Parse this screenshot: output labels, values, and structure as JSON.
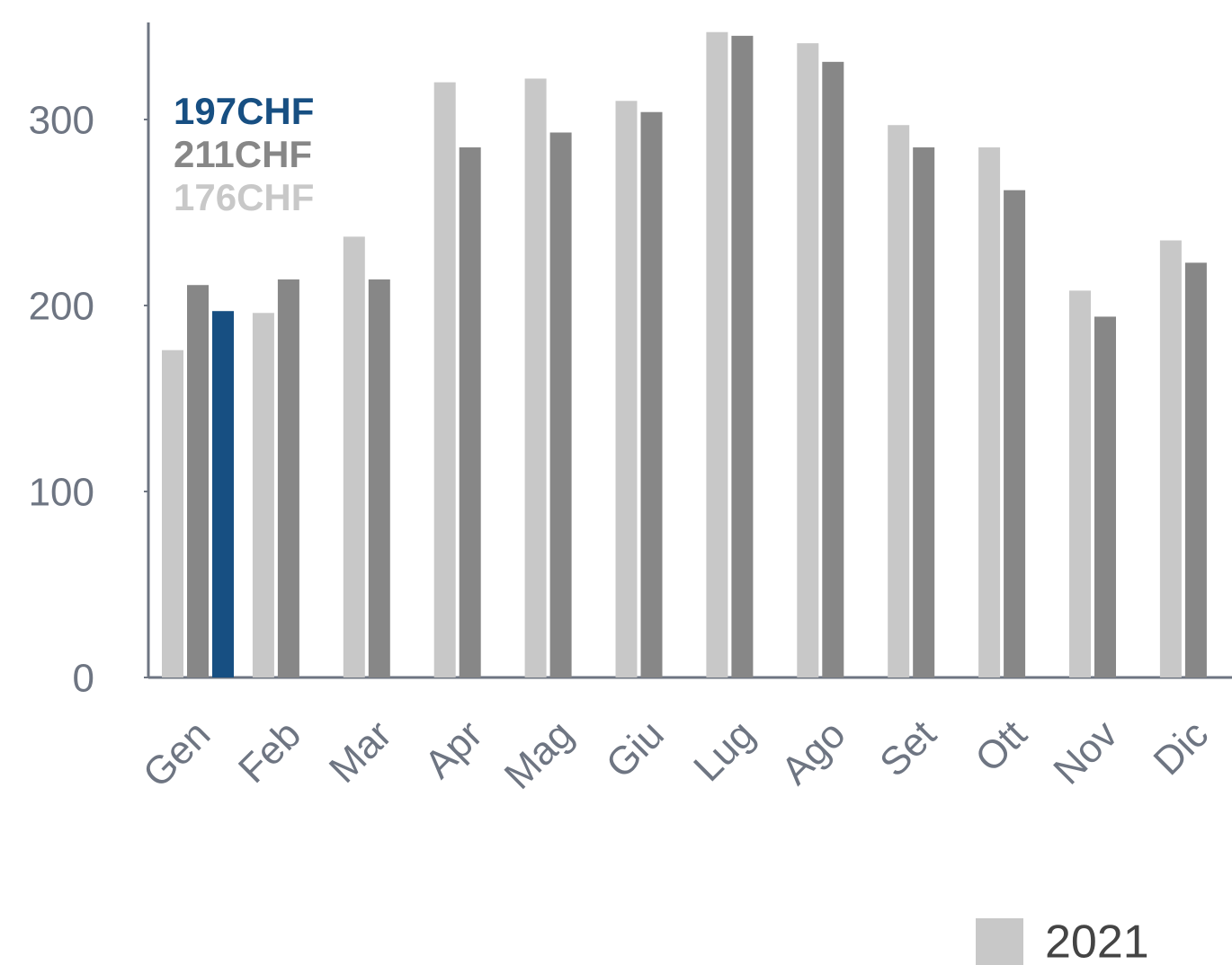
{
  "chart_data": {
    "type": "bar",
    "categories": [
      "Gen",
      "Feb",
      "Mar",
      "Apr",
      "Mag",
      "Giu",
      "Lug",
      "Ago",
      "Set",
      "Ott",
      "Nov",
      "Dic"
    ],
    "series": [
      {
        "name": "2021",
        "color": "#c8c8c8",
        "values": [
          176,
          196,
          237,
          320,
          322,
          310,
          347,
          341,
          297,
          285,
          208,
          235
        ]
      },
      {
        "color": "#878787",
        "values": [
          211,
          214,
          214,
          285,
          293,
          304,
          345,
          331,
          285,
          262,
          194,
          223
        ]
      },
      {
        "color": "#174f82",
        "values": [
          197,
          null,
          null,
          null,
          null,
          null,
          null,
          null,
          null,
          null,
          null,
          null
        ]
      }
    ],
    "annotations": [
      {
        "text": "197CHF",
        "color": "#174f82"
      },
      {
        "text": "211CHF",
        "color": "#878787"
      },
      {
        "text": "176CHF",
        "color": "#c8c8c8"
      }
    ],
    "ylim": [
      0,
      350
    ],
    "yticks": [
      0,
      100,
      200,
      300
    ],
    "grid": false,
    "legend": "bottom-right"
  }
}
